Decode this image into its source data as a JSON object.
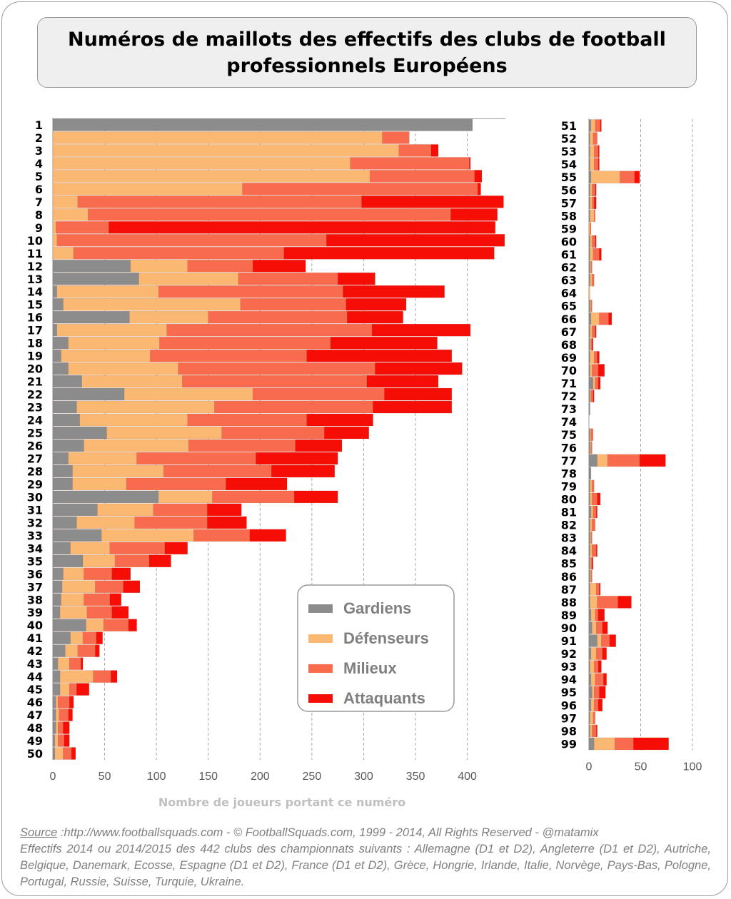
{
  "title": "Numéros de maillots des effectifs des clubs de football professionnels Européens",
  "source": {
    "label": "Source",
    "line1": " :http://www.footballsquads.com - © FootballSquads.com, 1999 - 2014, All Rights Reserved - @matamix",
    "line2": "Effectifs 2014 ou 2014/2015 des 442 clubs des championnats suivants : Allemagne (D1 et D2), Angleterre (D1 et D2), Autriche, Belgique, Danemark, Ecosse, Espagne (D1 et D2), France (D1 et D2), Grèce, Hongrie, Irlande, Italie, Norvège, Pays-Bas, Pologne, Portugal, Russie, Suisse, Turquie, Ukraine."
  },
  "colors": {
    "Gardiens": "#8c8c8c",
    "Défenseurs": "#fbb873",
    "Milieux": "#f96b4f",
    "Attaquants": "#f50d06"
  },
  "chart_data": [
    {
      "type": "bar",
      "orientation": "horizontal",
      "stacked": true,
      "xlabel": "Nombre de joueurs portant ce numéro",
      "xlim": [
        0,
        440
      ],
      "xticks": [
        0,
        50,
        100,
        150,
        200,
        250,
        300,
        350,
        400
      ],
      "legend": [
        "Gardiens",
        "Défenseurs",
        "Milieux",
        "Attaquants"
      ],
      "legend_position": "bottom-right",
      "grid": "vertical dashed",
      "categories": [
        "1",
        "2",
        "3",
        "4",
        "5",
        "6",
        "7",
        "8",
        "9",
        "10",
        "11",
        "12",
        "13",
        "14",
        "15",
        "16",
        "17",
        "18",
        "19",
        "20",
        "21",
        "22",
        "23",
        "24",
        "25",
        "26",
        "27",
        "28",
        "29",
        "30",
        "31",
        "32",
        "33",
        "34",
        "35",
        "36",
        "37",
        "38",
        "39",
        "40",
        "41",
        "42",
        "43",
        "44",
        "45",
        "46",
        "47",
        "48",
        "49",
        "50"
      ],
      "series": [
        {
          "name": "Gardiens",
          "values": [
            405,
            0,
            0,
            0,
            0,
            0,
            0,
            0,
            0,
            0,
            0,
            75,
            83,
            4,
            10,
            74,
            4,
            15,
            8,
            15,
            28,
            69,
            23,
            26,
            52,
            30,
            15,
            19,
            19,
            102,
            43,
            23,
            47,
            17,
            29,
            10,
            9,
            8,
            7,
            32,
            17,
            12,
            5,
            7,
            7,
            3,
            3,
            3,
            2,
            2
          ]
        },
        {
          "name": "Défenseurs",
          "values": [
            0,
            318,
            334,
            287,
            306,
            183,
            24,
            34,
            3,
            4,
            20,
            55,
            96,
            98,
            171,
            76,
            106,
            88,
            86,
            106,
            97,
            124,
            133,
            104,
            111,
            101,
            66,
            88,
            52,
            52,
            54,
            56,
            89,
            38,
            31,
            20,
            32,
            22,
            26,
            17,
            12,
            12,
            11,
            32,
            9,
            2,
            3,
            2,
            3,
            8
          ]
        },
        {
          "name": "Milieux",
          "values": [
            0,
            26,
            31,
            115,
            101,
            227,
            274,
            350,
            51,
            260,
            203,
            63,
            96,
            178,
            102,
            134,
            198,
            165,
            151,
            190,
            178,
            127,
            153,
            115,
            99,
            103,
            115,
            104,
            96,
            79,
            52,
            70,
            54,
            53,
            33,
            27,
            27,
            25,
            24,
            24,
            13,
            17,
            11,
            17,
            7,
            11,
            9,
            5,
            6,
            8
          ]
        },
        {
          "name": "Attaquants",
          "values": [
            0,
            0,
            7,
            1,
            7,
            3,
            137,
            45,
            373,
            172,
            203,
            51,
            36,
            98,
            58,
            54,
            95,
            103,
            140,
            84,
            69,
            65,
            76,
            64,
            43,
            45,
            79,
            61,
            59,
            42,
            33,
            38,
            35,
            22,
            21,
            18,
            16,
            11,
            16,
            8,
            6,
            4,
            2,
            6,
            12,
            4,
            4,
            6,
            5,
            4
          ]
        }
      ]
    },
    {
      "type": "bar",
      "orientation": "horizontal",
      "stacked": true,
      "xlabel": "",
      "xlim": [
        0,
        100
      ],
      "xticks": [
        0,
        50,
        100
      ],
      "grid": "vertical dashed",
      "categories": [
        "51",
        "52",
        "53",
        "54",
        "55",
        "56",
        "57",
        "58",
        "59",
        "60",
        "61",
        "62",
        "63",
        "64",
        "65",
        "66",
        "67",
        "68",
        "69",
        "70",
        "71",
        "72",
        "73",
        "74",
        "75",
        "76",
        "77",
        "78",
        "79",
        "80",
        "81",
        "82",
        "83",
        "84",
        "85",
        "86",
        "87",
        "88",
        "89",
        "90",
        "91",
        "92",
        "93",
        "94",
        "95",
        "96",
        "97",
        "98",
        "99"
      ],
      "series": [
        {
          "name": "Gardiens",
          "values": [
            2,
            1,
            1,
            1,
            2,
            1,
            1,
            1,
            0,
            1,
            1,
            1,
            1,
            0,
            1,
            2,
            1,
            1,
            1,
            1,
            4,
            1,
            1,
            0,
            1,
            1,
            8,
            2,
            1,
            1,
            2,
            1,
            1,
            1,
            1,
            1,
            1,
            1,
            2,
            3,
            8,
            2,
            1,
            2,
            3,
            2,
            1,
            1,
            5
          ]
        },
        {
          "name": "Défenseurs",
          "values": [
            4,
            3,
            4,
            4,
            28,
            2,
            2,
            4,
            1,
            2,
            3,
            1,
            2,
            1,
            1,
            8,
            2,
            1,
            4,
            2,
            2,
            1,
            0,
            0,
            1,
            1,
            10,
            0,
            2,
            2,
            2,
            2,
            1,
            2,
            1,
            1,
            6,
            7,
            4,
            4,
            4,
            5,
            4,
            4,
            2,
            3,
            3,
            2,
            20
          ]
        },
        {
          "name": "Milieux",
          "values": [
            5,
            4,
            4,
            4,
            14,
            3,
            2,
            1,
            1,
            3,
            6,
            1,
            2,
            0,
            1,
            9,
            3,
            1,
            3,
            6,
            3,
            2,
            0,
            0,
            2,
            1,
            31,
            0,
            2,
            5,
            3,
            3,
            1,
            4,
            1,
            1,
            3,
            20,
            3,
            6,
            8,
            6,
            4,
            8,
            5,
            4,
            2,
            4,
            18
          ]
        },
        {
          "name": "Attaquants",
          "values": [
            1,
            0,
            1,
            1,
            5,
            1,
            2,
            0,
            0,
            1,
            2,
            0,
            0,
            0,
            0,
            3,
            1,
            1,
            2,
            6,
            2,
            1,
            0,
            0,
            0,
            0,
            25,
            0,
            0,
            3,
            1,
            0,
            0,
            1,
            1,
            0,
            1,
            13,
            6,
            5,
            6,
            4,
            3,
            3,
            6,
            4,
            0,
            1,
            34
          ]
        }
      ]
    }
  ]
}
